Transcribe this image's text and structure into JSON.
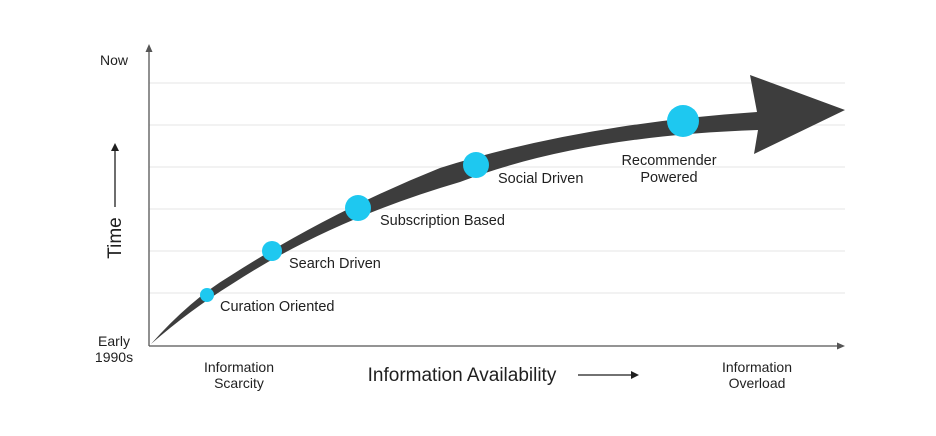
{
  "y_axis": {
    "top_label": "Now",
    "bottom_label_line1": "Early",
    "bottom_label_line2": "1990s",
    "title": "Time"
  },
  "x_axis": {
    "left_label_line1": "Information",
    "left_label_line2": "Scarcity",
    "title": "Information Availability",
    "right_label_line1": "Information",
    "right_label_line2": "Overload"
  },
  "stages": [
    {
      "label": "Curation Oriented"
    },
    {
      "label": "Search Driven"
    },
    {
      "label": "Subscription Based"
    },
    {
      "label": "Social Driven"
    },
    {
      "label_line1": "Recommender",
      "label_line2": "Powered"
    }
  ],
  "colors": {
    "arrow": "#3d3d3d",
    "marker": "#1ec8f0",
    "axis": "#555555",
    "grid": "#e6e6e6"
  }
}
